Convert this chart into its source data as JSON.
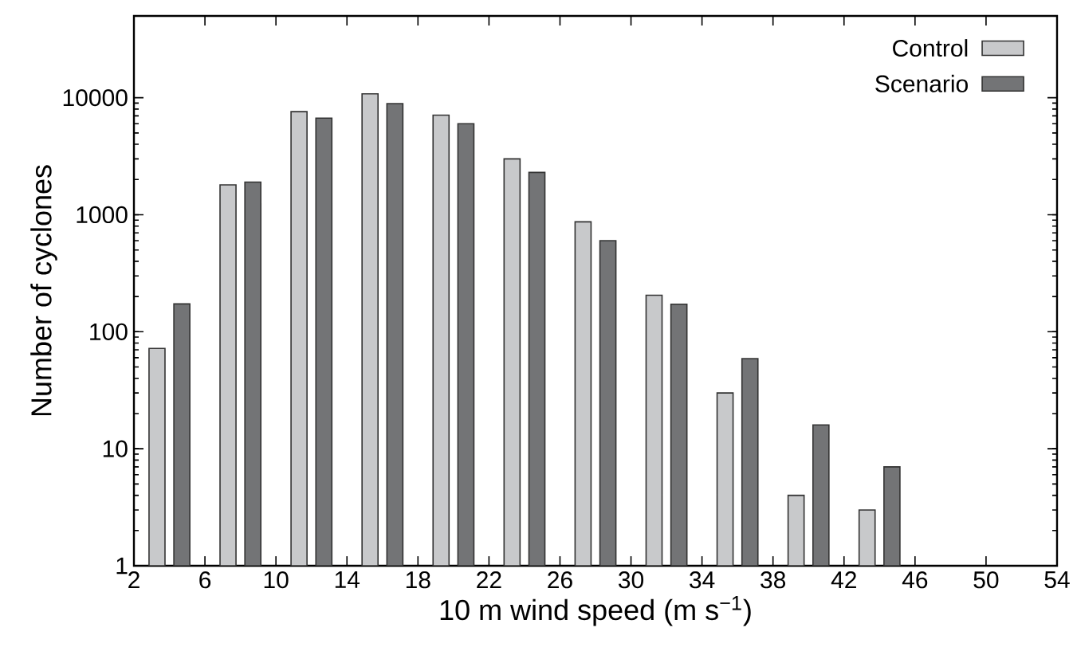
{
  "chart_data": {
    "type": "bar",
    "xlabel": "10 m wind speed (m s$^{−1}$)",
    "ylabel": "Number of cyclones",
    "x": [
      4,
      8,
      12,
      16,
      20,
      24,
      28,
      32,
      36,
      40,
      44
    ],
    "series": [
      {
        "name": "Control",
        "color": "#c8c9cb",
        "values": [
          72,
          1800,
          7600,
          10800,
          7100,
          3000,
          870,
          205,
          30,
          4,
          3
        ]
      },
      {
        "name": "Scenario",
        "color": "#737476",
        "values": [
          173,
          1900,
          6700,
          8900,
          6000,
          2300,
          600,
          172,
          59,
          16,
          7
        ]
      }
    ],
    "log": "y",
    "xlim": [
      2,
      54
    ],
    "ylim": [
      1,
      50000
    ],
    "xticks": [
      2,
      6,
      10,
      14,
      18,
      22,
      26,
      30,
      34,
      38,
      42,
      46,
      50,
      54
    ],
    "yticks": [
      1,
      10,
      100,
      1000,
      10000
    ],
    "legend": "top right"
  }
}
